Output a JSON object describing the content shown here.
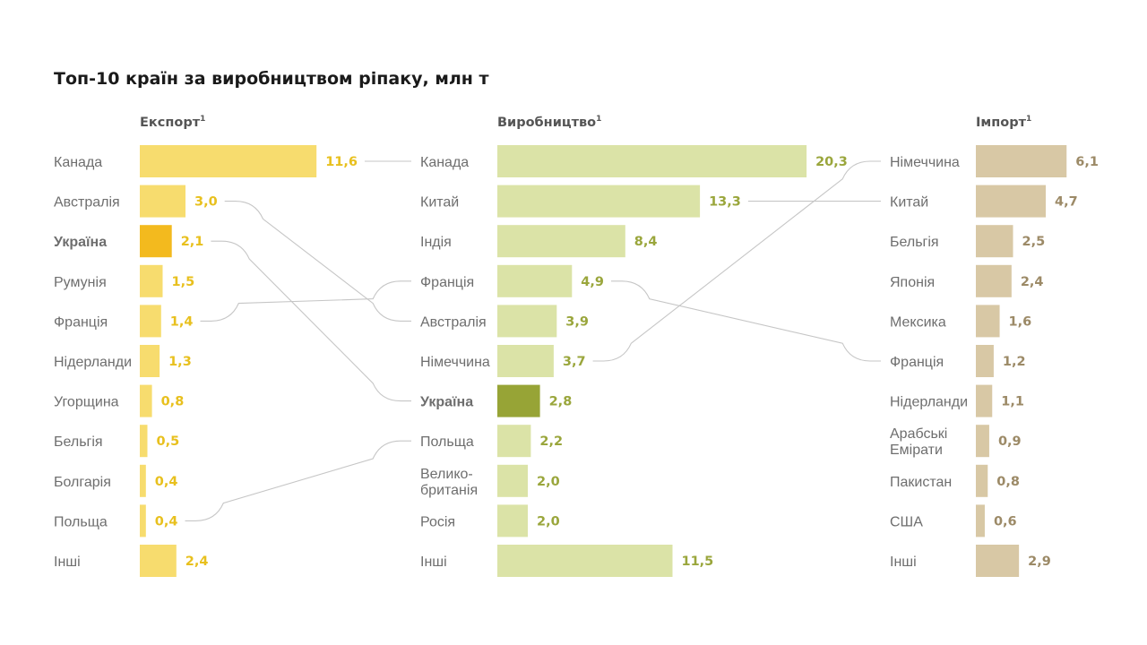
{
  "chart_data": {
    "type": "bar",
    "title": "Топ-10 країн за виробництвом ріпаку, млн т",
    "footnote_mark": "1",
    "highlight": "Україна",
    "panels": [
      {
        "key": "export",
        "header": "Експорт",
        "categories": [
          "Канада",
          "Австралія",
          "Україна",
          "Румунія",
          "Франція",
          "Нідерланди",
          "Угорщина",
          "Бельгія",
          "Болгарія",
          "Польща",
          "Інші"
        ],
        "values": [
          11.6,
          3.0,
          2.1,
          1.5,
          1.4,
          1.3,
          0.8,
          0.5,
          0.4,
          0.4,
          2.4
        ],
        "value_labels": [
          "11,6",
          "3,0",
          "2,1",
          "1,5",
          "1,4",
          "1,3",
          "0,8",
          "0,5",
          "0,4",
          "0,4",
          "2,4"
        ],
        "bar_color": "#f7dc6e",
        "highlight_color": "#f3ba1e",
        "value_color": "#e8c01e",
        "label_highlight_color": "#efb81a"
      },
      {
        "key": "production",
        "header": "Виробництво",
        "categories": [
          "Канада",
          "Китай",
          "Індія",
          "Франція",
          "Австралія",
          "Німеччина",
          "Україна",
          "Польща",
          "Велико-\nбританія",
          "Росія",
          "Інші"
        ],
        "values": [
          20.3,
          13.3,
          8.4,
          4.9,
          3.9,
          3.7,
          2.8,
          2.2,
          2.0,
          2.0,
          11.5
        ],
        "value_labels": [
          "20,3",
          "13,3",
          "8,4",
          "4,9",
          "3,9",
          "3,7",
          "2,8",
          "2,2",
          "2,0",
          "2,0",
          "11,5"
        ],
        "bar_color": "#dbe3a7",
        "highlight_color": "#97a436",
        "value_color": "#9aa63c",
        "label_highlight_color": "#97a436"
      },
      {
        "key": "import",
        "header": "Імпорт",
        "categories": [
          "Німеччина",
          "Китай",
          "Бельгія",
          "Японія",
          "Мексика",
          "Франція",
          "Нідерланди",
          "Арабські\nЕмірати",
          "Пакистан",
          "США",
          "Інші"
        ],
        "values": [
          6.1,
          4.7,
          2.5,
          2.4,
          1.6,
          1.2,
          1.1,
          0.9,
          0.8,
          0.6,
          2.9
        ],
        "value_labels": [
          "6,1",
          "4,7",
          "2,5",
          "2,4",
          "1,6",
          "1,2",
          "1,1",
          "0,9",
          "0,8",
          "0,6",
          "2,9"
        ],
        "bar_color": "#d8c8a5",
        "highlight_color": "#d8c8a5",
        "value_color": "#9c8a67",
        "label_highlight_color": "#9c8a67"
      }
    ],
    "connectors": [
      {
        "from": "export",
        "to": "production",
        "country": "Канада"
      },
      {
        "from": "export",
        "to": "production",
        "country": "Австралія"
      },
      {
        "from": "export",
        "to": "production",
        "country": "Україна"
      },
      {
        "from": "export",
        "to": "production",
        "country": "Франція"
      },
      {
        "from": "export",
        "to": "production",
        "country": "Польща"
      },
      {
        "from": "production",
        "to": "import",
        "country": "Китай"
      },
      {
        "from": "production",
        "to": "import",
        "country": "Франція"
      },
      {
        "from": "production",
        "to": "import",
        "country": "Німеччина"
      }
    ]
  }
}
